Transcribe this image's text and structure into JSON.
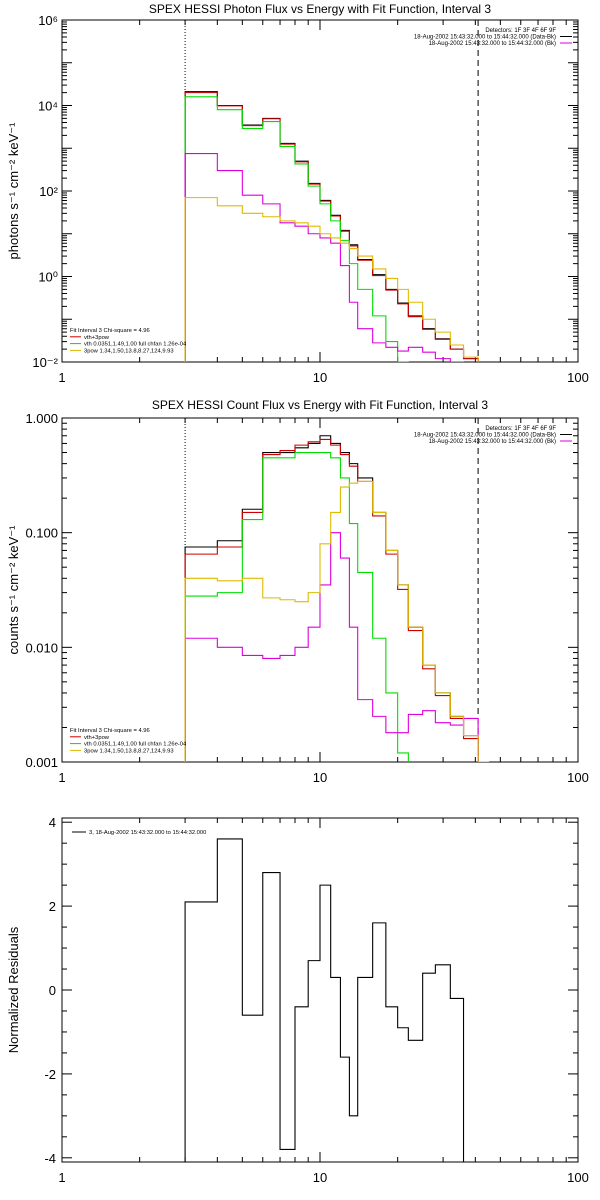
{
  "chart_data": [
    {
      "type": "line",
      "title": "SPEX HESSI Photon Flux vs Energy with Fit Function, Interval 3",
      "xlabel": "",
      "ylabel": "photons s⁻¹ cm⁻² keV⁻¹",
      "x_scale": "log",
      "y_scale": "log",
      "xlim": [
        1,
        100
      ],
      "ylim": [
        0.01,
        1000000
      ],
      "x_ticks": [
        "1",
        "10",
        "100"
      ],
      "y_ticks": [
        "10⁻²",
        "10⁰",
        "10²",
        "10⁴",
        "10⁶"
      ],
      "vlines": {
        "dotted": 3,
        "dashed": 41
      },
      "header_text": [
        "Detectors: 1F 3F 4F 6F 9F",
        "18-Aug-2002 15:43:32.000 to 15:44:32.000 (Data-Bk)",
        "18-Aug-2002 15:43:32.000 to 15:44:32.000 (Bk)"
      ],
      "header_colors": [
        "",
        "#000000",
        "#dd00dd"
      ],
      "legend_text": [
        "Fit Interval 3   Chi-square = 4.96",
        "vth+3pow",
        "vth 0.0351,1.49,1.00  full chfan 1.26e-04",
        "3pow 1.34,1.50,13.8,8.27,124,9.93"
      ],
      "legend_colors": [
        "",
        "#cc0000",
        "#00dd00",
        "#ddbb00"
      ],
      "edges": [
        3,
        4,
        5,
        6,
        7,
        8,
        9,
        10,
        11,
        12,
        13,
        14,
        16,
        18,
        20,
        22,
        25,
        28,
        32,
        36,
        41
      ],
      "series": [
        {
          "color": "#000000",
          "values": [
            21000,
            10000,
            3500,
            5000,
            1300,
            500,
            150,
            60,
            27,
            12,
            5.5,
            2.5,
            1.1,
            0.5,
            0.24,
            0.12,
            0.06,
            0.035,
            0.02,
            0.012
          ]
        },
        {
          "color": "#cc0000",
          "values": [
            20000,
            9800,
            3400,
            4900,
            1250,
            480,
            145,
            58,
            26,
            11.5,
            5.2,
            2.4,
            1.05,
            0.48,
            0.23,
            0.115,
            0.058,
            0.034,
            0.02,
            0.012
          ]
        },
        {
          "color": "#00dd00",
          "values": [
            16000,
            8000,
            2900,
            4200,
            1100,
            430,
            130,
            50,
            20,
            7,
            2,
            0.5,
            0.12,
            0.03,
            0.01
          ]
        },
        {
          "color": "#dd00dd",
          "values": [
            750,
            300,
            80,
            50,
            18,
            15,
            10,
            8,
            6,
            1.8,
            0.25,
            0.06,
            0.028,
            0.022,
            0.018,
            0.022,
            0.017,
            0.012,
            0.01
          ]
        },
        {
          "color": "#ddbb00",
          "values": [
            70,
            45,
            30,
            25,
            20,
            18,
            15,
            10,
            8,
            6,
            4.5,
            3,
            1.5,
            0.9,
            0.5,
            0.25,
            0.1,
            0.05,
            0.025,
            0.013
          ]
        }
      ]
    },
    {
      "type": "line",
      "title": "SPEX HESSI Count Flux vs Energy with Fit Function, Interval 3",
      "xlabel": "",
      "ylabel": "counts s⁻¹ cm⁻² keV⁻¹",
      "x_scale": "log",
      "y_scale": "log",
      "xlim": [
        1,
        100
      ],
      "ylim": [
        0.001,
        1
      ],
      "x_ticks": [
        "1",
        "10",
        "100"
      ],
      "y_ticks": [
        "0.001",
        "0.010",
        "0.100",
        "1.000"
      ],
      "vlines": {
        "dotted": 3,
        "dashed": 41
      },
      "header_text": [
        "Detectors: 1F 3F 4F 6F 9F",
        "18-Aug-2002 15:43:32.000 to 15:44:32.000 (Data-Bk)",
        "18-Aug-2002 15:43:32.000 to 15:44:32.000 (Bk)"
      ],
      "header_colors": [
        "",
        "#000000",
        "#dd00dd"
      ],
      "legend_text": [
        "Fit Interval 3   Chi-square = 4.96",
        "vth+3pow",
        "vth 0.0351,1.49,1.00  full chfan 1.26e-04",
        "3pow 1.34,1.50,13.8,8.27,124,9.93"
      ],
      "legend_colors": [
        "",
        "#cc0000",
        "#00dd00",
        "#ddbb00"
      ],
      "edges": [
        3,
        4,
        5,
        6,
        7,
        8,
        9,
        10,
        11,
        12,
        13,
        14,
        16,
        18,
        20,
        22,
        25,
        28,
        32,
        36,
        41,
        45
      ],
      "series": [
        {
          "color": "#000000",
          "values": [
            0.075,
            0.085,
            0.16,
            0.5,
            0.5,
            0.55,
            0.6,
            0.7,
            0.6,
            0.5,
            0.4,
            0.3,
            0.15,
            0.07,
            0.035,
            0.015,
            0.007,
            0.004,
            0.0025,
            0.0017,
            0.0009
          ]
        },
        {
          "color": "#cc0000",
          "values": [
            0.065,
            0.075,
            0.15,
            0.48,
            0.52,
            0.58,
            0.62,
            0.65,
            0.58,
            0.48,
            0.38,
            0.28,
            0.14,
            0.065,
            0.032,
            0.014,
            0.0065,
            0.0038,
            0.0024,
            0.0016,
            0.0009
          ]
        },
        {
          "color": "#00dd00",
          "values": [
            0.028,
            0.03,
            0.13,
            0.45,
            0.45,
            0.5,
            0.5,
            0.5,
            0.45,
            0.3,
            0.12,
            0.045,
            0.012,
            0.004,
            0.0012
          ]
        },
        {
          "color": "#dd00dd",
          "values": [
            0.012,
            0.01,
            0.0085,
            0.008,
            0.0085,
            0.01,
            0.015,
            0.035,
            0.1,
            0.06,
            0.015,
            0.0035,
            0.0025,
            0.0018,
            0.0018,
            0.0026,
            0.0028,
            0.0022,
            0.0021,
            0.0024
          ]
        },
        {
          "color": "#ddbb00",
          "values": [
            0.04,
            0.038,
            0.04,
            0.027,
            0.026,
            0.025,
            0.03,
            0.08,
            0.15,
            0.25,
            0.27,
            0.28,
            0.15,
            0.07,
            0.035,
            0.015,
            0.007,
            0.004,
            0.0025,
            0.0017,
            0.001
          ]
        }
      ]
    },
    {
      "type": "line",
      "title": "",
      "xlabel": "",
      "ylabel": "Normalized Residuals",
      "x_scale": "log",
      "y_scale": "linear",
      "xlim": [
        1,
        100
      ],
      "ylim": [
        -4.1,
        4.1
      ],
      "x_ticks": [
        "1",
        "10",
        "100"
      ],
      "y_ticks": [
        "-4",
        "-2",
        "0",
        "2",
        "4"
      ],
      "legend_text": [
        "3, 18-Aug-2002 15:43:32.000 to 15:44:32.000"
      ],
      "edges": [
        3,
        4,
        5,
        6,
        7,
        8,
        9,
        10,
        11,
        12,
        13,
        14,
        16,
        18,
        20,
        22,
        25,
        28,
        32,
        36,
        41
      ],
      "series": [
        {
          "color": "#000000",
          "values": [
            2.1,
            3.6,
            -0.6,
            2.8,
            -3.8,
            -0.4,
            0.7,
            2.5,
            0.3,
            -1.6,
            -3.0,
            0.3,
            1.6,
            -0.4,
            -0.9,
            -1.2,
            0.4,
            0.6,
            -0.2,
            -4.2
          ]
        }
      ]
    }
  ]
}
